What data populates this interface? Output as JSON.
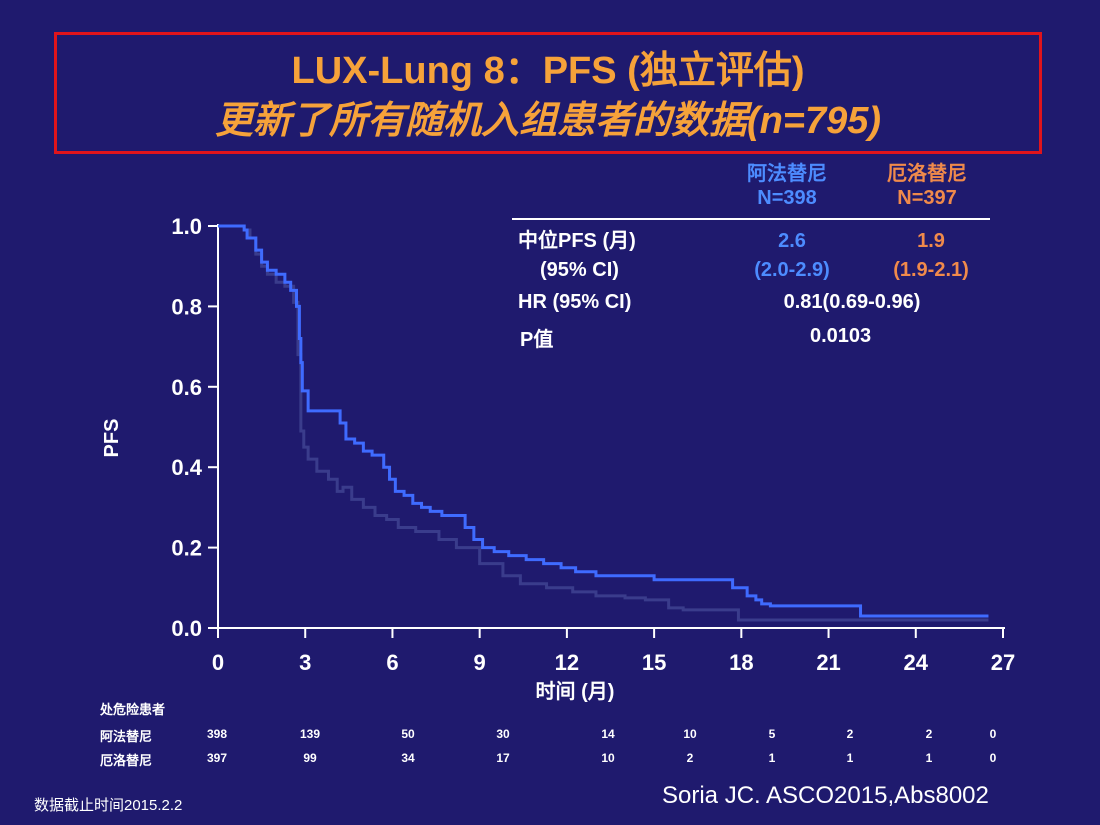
{
  "title": {
    "line1": "LUX-Lung 8：PFS (独立评估)",
    "line2": "更新了所有随机入组患者的数据(n=795)"
  },
  "colors": {
    "afatinib": "#3f6bff",
    "erlotinib": "#3a3c8c",
    "title": "#f6a23a",
    "border": "#e0141c",
    "background": "#1f1a6e"
  },
  "header": {
    "afatinib_name": "阿法替尼",
    "afatinib_n": "N=398",
    "erlotinib_name": "厄洛替尼",
    "erlotinib_n": "N=397"
  },
  "stats": {
    "median_label": "中位PFS (月)",
    "ci_label": "(95% CI)",
    "afatinib_median": "2.6",
    "afatinib_ci": "(2.0-2.9)",
    "erlotinib_median": "1.9",
    "erlotinib_ci": "(1.9-2.1)",
    "hr_label": "HR (95% CI)",
    "hr_value": "0.81(0.69-0.96)",
    "p_label": "P值",
    "p_value": "0.0103"
  },
  "chart_data": {
    "type": "line",
    "ylabel": "PFS",
    "xlabel": "时间 (月)",
    "xlim": [
      0,
      27
    ],
    "ylim": [
      0,
      1.0
    ],
    "xticks": [
      0,
      3,
      6,
      9,
      12,
      15,
      18,
      21,
      24,
      27
    ],
    "yticks": [
      0.0,
      0.2,
      0.4,
      0.6,
      0.8,
      1.0
    ],
    "ytick_labels": [
      "0.0",
      "0.2",
      "0.4",
      "0.6",
      "0.8",
      "1.0"
    ],
    "series": [
      {
        "name": "阿法替尼",
        "step": true,
        "x": [
          0,
          0.9,
          1.0,
          1.3,
          1.5,
          1.7,
          2.0,
          2.3,
          2.5,
          2.7,
          2.8,
          2.85,
          2.9,
          3.1,
          4.2,
          4.4,
          4.7,
          5.0,
          5.3,
          5.7,
          5.9,
          6.1,
          6.4,
          6.7,
          7.0,
          7.3,
          7.7,
          8.1,
          8.5,
          8.8,
          9.1,
          9.5,
          10.0,
          10.6,
          11.2,
          11.8,
          12.3,
          13.0,
          14.0,
          15.0,
          16.5,
          17.5,
          17.7,
          18.2,
          18.5,
          18.7,
          19.0,
          22.1,
          26.5
        ],
        "y": [
          1.0,
          0.99,
          0.97,
          0.94,
          0.91,
          0.89,
          0.88,
          0.86,
          0.84,
          0.8,
          0.72,
          0.66,
          0.59,
          0.54,
          0.51,
          0.47,
          0.46,
          0.44,
          0.43,
          0.4,
          0.37,
          0.34,
          0.33,
          0.31,
          0.3,
          0.29,
          0.28,
          0.28,
          0.25,
          0.22,
          0.2,
          0.19,
          0.18,
          0.17,
          0.16,
          0.15,
          0.14,
          0.13,
          0.13,
          0.12,
          0.12,
          0.12,
          0.1,
          0.08,
          0.07,
          0.06,
          0.055,
          0.03,
          0.03
        ]
      },
      {
        "name": "厄洛替尼",
        "step": true,
        "x": [
          0,
          0.9,
          1.1,
          1.3,
          1.5,
          1.7,
          2.0,
          2.3,
          2.6,
          2.75,
          2.85,
          2.95,
          3.1,
          3.4,
          3.8,
          4.1,
          4.3,
          4.6,
          5.0,
          5.4,
          5.8,
          6.2,
          6.8,
          7.6,
          8.2,
          9.0,
          9.8,
          10.4,
          11.3,
          12.2,
          13.0,
          14.0,
          14.7,
          15.5,
          16.0,
          17.0,
          17.9,
          20.0,
          26.5
        ],
        "y": [
          1.0,
          0.99,
          0.97,
          0.93,
          0.9,
          0.88,
          0.86,
          0.85,
          0.81,
          0.68,
          0.49,
          0.45,
          0.42,
          0.39,
          0.37,
          0.34,
          0.35,
          0.32,
          0.3,
          0.28,
          0.27,
          0.25,
          0.24,
          0.22,
          0.2,
          0.16,
          0.13,
          0.11,
          0.1,
          0.09,
          0.08,
          0.075,
          0.07,
          0.05,
          0.045,
          0.045,
          0.02,
          0.02,
          0.02
        ]
      }
    ]
  },
  "risk_table": {
    "title": "处危险患者",
    "rows": [
      {
        "label": "阿法替尼",
        "values": [
          "398",
          "139",
          "50",
          "30",
          "14",
          "10",
          "5",
          "2",
          "2",
          "0"
        ]
      },
      {
        "label": "厄洛替尼",
        "values": [
          "397",
          "99",
          "34",
          "17",
          "10",
          "2",
          "1",
          "1",
          "1",
          "0"
        ]
      }
    ]
  },
  "footnote": "数据截止时间2015.2.2",
  "citation": "Soria JC. ASCO2015,Abs8002"
}
